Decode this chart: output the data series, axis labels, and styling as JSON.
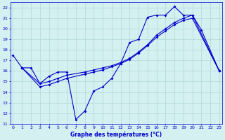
{
  "title": "Graphe des températures (°C)",
  "bg_color": "#d4f0f0",
  "grid_color": "#b0d8d8",
  "line_color": "#0000cc",
  "xlim": [
    -0.3,
    23.3
  ],
  "ylim": [
    11,
    22.5
  ],
  "xticks": [
    0,
    1,
    2,
    3,
    4,
    5,
    6,
    7,
    8,
    9,
    10,
    11,
    12,
    13,
    14,
    15,
    16,
    17,
    18,
    19,
    20,
    21,
    22,
    23
  ],
  "yticks": [
    11,
    12,
    13,
    14,
    15,
    16,
    17,
    18,
    19,
    20,
    21,
    22
  ],
  "series1_x": [
    0,
    1,
    2,
    3,
    4,
    5,
    6,
    7,
    8,
    9,
    10,
    11,
    12,
    13,
    14,
    15,
    16,
    17,
    18,
    19,
    20,
    21,
    23
  ],
  "series1_y": [
    17.5,
    16.3,
    16.3,
    14.8,
    15.5,
    15.9,
    15.9,
    11.4,
    12.2,
    14.1,
    14.5,
    15.3,
    16.7,
    18.7,
    19.0,
    21.1,
    21.3,
    21.3,
    22.1,
    21.3,
    21.3,
    19.9,
    16.0
  ],
  "series2_x": [
    1,
    3,
    4,
    5,
    6,
    8,
    9,
    10,
    11,
    12,
    13,
    14,
    15,
    16,
    17,
    18,
    19,
    20,
    23
  ],
  "series2_y": [
    16.3,
    14.8,
    15.0,
    15.3,
    15.6,
    15.9,
    16.1,
    16.3,
    16.5,
    16.8,
    17.2,
    17.8,
    18.5,
    19.4,
    20.0,
    20.6,
    21.0,
    21.3,
    16.0
  ],
  "series3_x": [
    1,
    3,
    4,
    5,
    6,
    8,
    9,
    10,
    11,
    12,
    13,
    14,
    15,
    16,
    17,
    18,
    19,
    20,
    23
  ],
  "series3_y": [
    16.3,
    14.5,
    14.7,
    15.0,
    15.3,
    15.7,
    15.9,
    16.1,
    16.4,
    16.7,
    17.1,
    17.7,
    18.4,
    19.2,
    19.8,
    20.4,
    20.8,
    21.0,
    16.0
  ]
}
